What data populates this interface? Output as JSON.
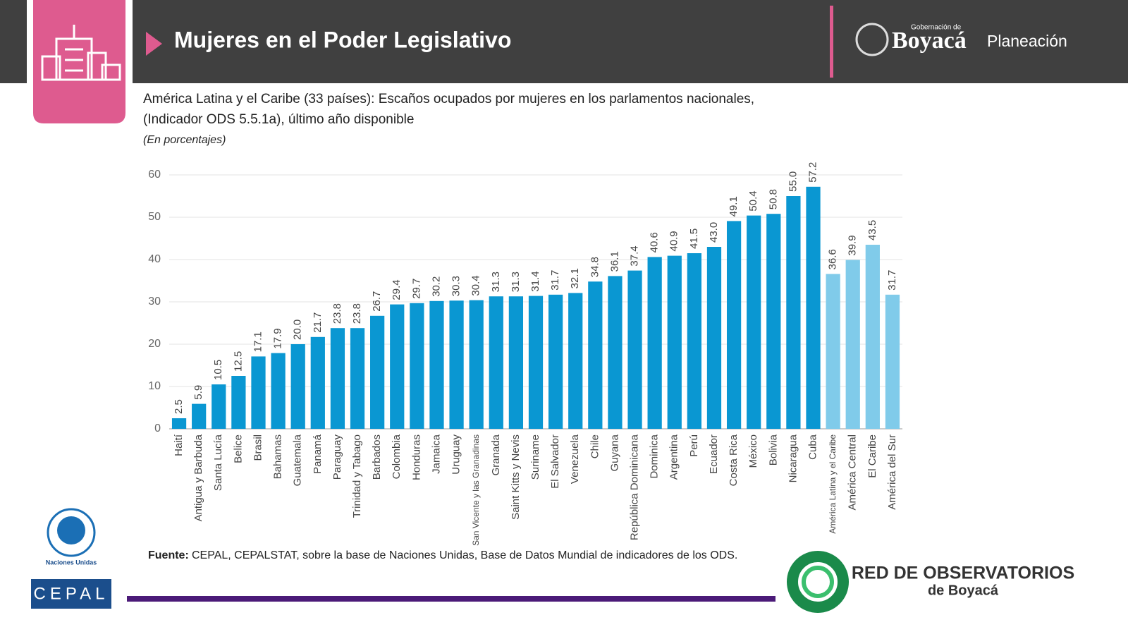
{
  "header": {
    "title": "Mujeres en el Poder Legislativo",
    "gov_small": "Gobernación de",
    "gov_name": "Boyacá",
    "gov_dept": "Planeación"
  },
  "chart_data": {
    "type": "bar",
    "title": [
      "América Latina y el Caribe (33 países): Escaños ocupados por mujeres en los parlamentos nacionales,",
      "(Indicador ODS 5.5.1a), último año disponible"
    ],
    "subtitle": "(En porcentajes)",
    "categories": [
      "Haití",
      "Antigua y Barbuda",
      "Santa Lucía",
      "Belice",
      "Brasil",
      "Bahamas",
      "Guatemala",
      "Panamá",
      "Paraguay",
      "Trinidad y Tabago",
      "Barbados",
      "Colombia",
      "Honduras",
      "Jamaica",
      "Uruguay",
      "San Vicente y las Granadinas",
      "Granada",
      "Saint Kitts y Nevis",
      "Suriname",
      "El Salvador",
      "Venezuela",
      "Chile",
      "Guyana",
      "República Dominicana",
      "Dominica",
      "Argentina",
      "Perú",
      "Ecuador",
      "Costa Rica",
      "México",
      "Bolivia",
      "Nicaragua",
      "Cuba",
      "América Latina y el Caribe",
      "América Central",
      "El Caribe",
      "América del Sur"
    ],
    "values": [
      2.5,
      5.9,
      10.5,
      12.5,
      17.1,
      17.9,
      20.0,
      21.7,
      23.8,
      23.8,
      26.7,
      29.4,
      29.7,
      30.2,
      30.3,
      30.4,
      31.3,
      31.3,
      31.4,
      31.7,
      32.1,
      34.8,
      36.1,
      37.4,
      40.6,
      40.9,
      41.5,
      43.0,
      49.1,
      50.4,
      50.8,
      55.0,
      57.2,
      36.6,
      39.9,
      43.5,
      31.7
    ],
    "value_labels": [
      "2.5",
      "5.9",
      "10.5",
      "12.5",
      "17.1",
      "17.9",
      "20.0",
      "21.7",
      "23.8",
      "23.8",
      "26.7",
      "29.4",
      "29.7",
      "30.2",
      "30.3",
      "30.4",
      "31.3",
      "31.3",
      "31.4",
      "31.7",
      "32.1",
      "34.8",
      "36.1",
      "37.4",
      "40.6",
      "40.9",
      "41.5",
      "43.0",
      "49.1",
      "50.4",
      "50.8",
      "55.0",
      "57.2",
      "36.6",
      "39.9",
      "43.5",
      "31.7"
    ],
    "colors": [
      "#0a97d2",
      "#0a97d2",
      "#0a97d2",
      "#0a97d2",
      "#0a97d2",
      "#0a97d2",
      "#0a97d2",
      "#0a97d2",
      "#0a97d2",
      "#0a97d2",
      "#0a97d2",
      "#0a97d2",
      "#0a97d2",
      "#0a97d2",
      "#0a97d2",
      "#0a97d2",
      "#0a97d2",
      "#0a97d2",
      "#0a97d2",
      "#0a97d2",
      "#0a97d2",
      "#0a97d2",
      "#0a97d2",
      "#0a97d2",
      "#0a97d2",
      "#0a97d2",
      "#0a97d2",
      "#0a97d2",
      "#0a97d2",
      "#0a97d2",
      "#0a97d2",
      "#0a97d2",
      "#0a97d2",
      "#80cbea",
      "#80cbea",
      "#80cbea",
      "#80cbea"
    ],
    "ylim": [
      0,
      60
    ],
    "yticks": [
      0,
      10,
      20,
      30,
      40,
      50,
      60
    ],
    "grid": true,
    "source_label": "Fuente:",
    "source": "CEPAL, CEPALSTAT, sobre la base de Naciones Unidas, Base de Datos Mundial de indicadores de los ODS."
  },
  "footer": {
    "un": "Naciones Unidas",
    "cepal": "CEPAL",
    "red": "RED DE OBSERVATORIOS",
    "red_sub": "de Boyacá"
  }
}
